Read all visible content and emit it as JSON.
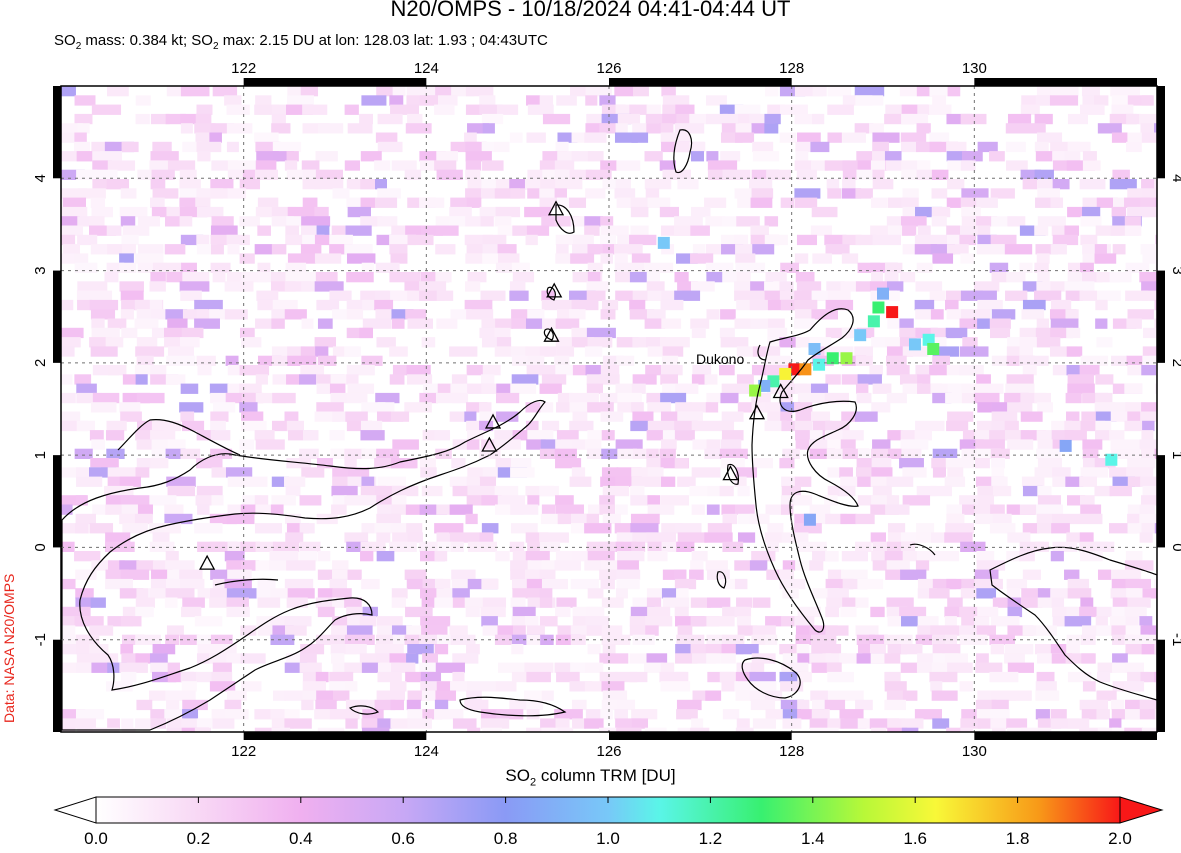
{
  "title": "N20/OMPS - 10/18/2024 04:41-04:44 UT",
  "subtitle": {
    "p1": "SO",
    "sub1": "2",
    "p2": " mass: 0.384 kt; SO",
    "sub2": "2",
    "p3": " max: 2.15 DU at lon: 128.03 lat: 1.93 ; 04:43UTC"
  },
  "credit": "Data: NASA N20/OMPS",
  "map": {
    "lon_range": [
      120,
      132
    ],
    "lat_range": [
      -2,
      5
    ],
    "x_ticks": [
      "122",
      "124",
      "126",
      "128",
      "130"
    ],
    "y_ticks": [
      "4",
      "3",
      "2",
      "1",
      "0",
      "-1"
    ],
    "volcano_label": "Dukono",
    "volcanoes": [
      {
        "lon": 121.6,
        "lat": -0.17
      },
      {
        "lon": 124.73,
        "lat": 1.36
      },
      {
        "lon": 124.69,
        "lat": 1.11
      },
      {
        "lon": 125.42,
        "lat": 3.67
      },
      {
        "lon": 125.4,
        "lat": 2.78
      },
      {
        "lon": 125.37,
        "lat": 2.3
      },
      {
        "lon": 127.88,
        "lat": 1.69
      },
      {
        "lon": 127.62,
        "lat": 1.46
      },
      {
        "lon": 127.33,
        "lat": 0.8
      }
    ],
    "hotspots": [
      {
        "lon": 128.03,
        "lat": 1.93,
        "du": 2.15
      },
      {
        "lon": 128.15,
        "lat": 1.93,
        "du": 1.85
      },
      {
        "lon": 127.93,
        "lat": 1.88,
        "du": 1.65
      },
      {
        "lon": 129.1,
        "lat": 2.55,
        "du": 2.05
      },
      {
        "lon": 127.8,
        "lat": 1.8,
        "du": 1.2
      },
      {
        "lon": 128.3,
        "lat": 1.98,
        "du": 1.1
      },
      {
        "lon": 128.45,
        "lat": 2.05,
        "du": 1.3
      },
      {
        "lon": 128.6,
        "lat": 2.05,
        "du": 1.45
      },
      {
        "lon": 127.7,
        "lat": 1.75,
        "du": 0.9
      },
      {
        "lon": 127.6,
        "lat": 1.7,
        "du": 1.45
      },
      {
        "lon": 128.75,
        "lat": 2.3,
        "du": 1.0
      },
      {
        "lon": 128.9,
        "lat": 2.45,
        "du": 1.2
      },
      {
        "lon": 128.95,
        "lat": 2.6,
        "du": 1.3
      },
      {
        "lon": 129.0,
        "lat": 2.75,
        "du": 0.9
      },
      {
        "lon": 129.35,
        "lat": 2.2,
        "du": 1.0
      },
      {
        "lon": 129.5,
        "lat": 2.25,
        "du": 1.1
      },
      {
        "lon": 129.55,
        "lat": 2.15,
        "du": 1.35
      },
      {
        "lon": 128.25,
        "lat": 2.15,
        "du": 0.95
      },
      {
        "lon": 126.6,
        "lat": 3.3,
        "du": 1.0
      },
      {
        "lon": 131.5,
        "lat": 0.95,
        "du": 1.1
      },
      {
        "lon": 131.0,
        "lat": 1.1,
        "du": 0.85
      },
      {
        "lon": 128.2,
        "lat": 0.3,
        "du": 0.85
      }
    ]
  },
  "colorbar": {
    "label_main": "SO",
    "label_sub": "2",
    "label_rest": " column TRM [DU]",
    "ticks": [
      "0.0",
      "0.2",
      "0.4",
      "0.6",
      "0.8",
      "1.0",
      "1.2",
      "1.4",
      "1.6",
      "1.8",
      "2.0"
    ],
    "colors": [
      "#ffffff",
      "#f5c8f0",
      "#d8a8f5",
      "#9a90f5",
      "#78c8f8",
      "#5af5e8",
      "#38f070",
      "#b8f838",
      "#f8f838",
      "#f89a18",
      "#f81818"
    ]
  }
}
